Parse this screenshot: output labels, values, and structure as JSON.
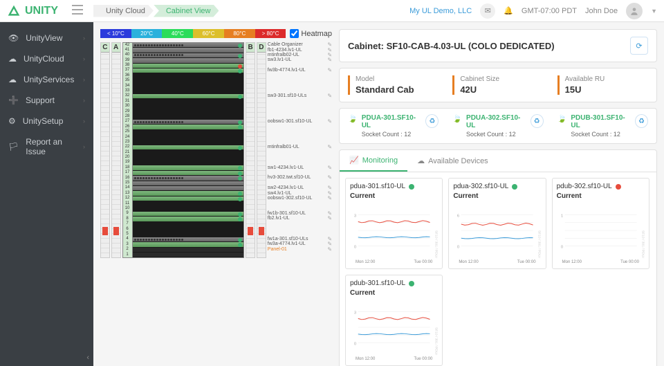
{
  "brand": "UNITY",
  "breadcrumb": [
    "Unity Cloud",
    "Cabinet View"
  ],
  "topRight": {
    "org": "My UL Demo, LLC",
    "tz": "GMT-07:00 PDT",
    "user": "John Doe"
  },
  "sidebar": [
    {
      "icon": "eye",
      "label": "UnityView"
    },
    {
      "icon": "cloud",
      "label": "UnityCloud"
    },
    {
      "icon": "cloud",
      "label": "UnityServices"
    },
    {
      "icon": "life-ring",
      "label": "Support"
    },
    {
      "icon": "gear",
      "label": "UnitySetup"
    },
    {
      "icon": "flag",
      "label": "Report an Issue"
    }
  ],
  "heatmap": {
    "checked": true,
    "label": "Heatmap",
    "segments": [
      {
        "t": "< 10°C",
        "c": "#2b3bdc"
      },
      {
        "t": "20°C",
        "c": "#2bb1dc"
      },
      {
        "t": "40°C",
        "c": "#2bdc5a"
      },
      {
        "t": "60°C",
        "c": "#dcbf2b"
      },
      {
        "t": "80°C",
        "c": "#e67e22"
      },
      {
        "t": "> 80°C",
        "c": "#dc2b2b"
      }
    ]
  },
  "pduCols": [
    "C",
    "A",
    "B",
    "D"
  ],
  "rack": {
    "units": 42,
    "devices": [
      {
        "from": 42,
        "to": 41,
        "type": "server",
        "led": "g"
      },
      {
        "from": 40,
        "to": 39,
        "type": "server",
        "led": "g"
      },
      {
        "from": 38,
        "to": 38,
        "type": "green",
        "led": "r"
      },
      {
        "from": 37,
        "to": 37,
        "type": "green",
        "led": "g"
      },
      {
        "from": 36,
        "to": 33,
        "type": "dark"
      },
      {
        "from": 32,
        "to": 32,
        "type": "green",
        "led": "g"
      },
      {
        "from": 31,
        "to": 28,
        "type": "dark"
      },
      {
        "from": 27,
        "to": 27,
        "type": "server",
        "led": "g"
      },
      {
        "from": 26,
        "to": 26,
        "type": "green",
        "led": "g"
      },
      {
        "from": 25,
        "to": 23,
        "type": "dark"
      },
      {
        "from": 22,
        "to": 22,
        "type": "green",
        "led": "g"
      },
      {
        "from": 21,
        "to": 19,
        "type": "dark"
      },
      {
        "from": 18,
        "to": 18,
        "type": "green",
        "led": "g"
      },
      {
        "from": 17,
        "to": 17,
        "type": "green",
        "led": "g"
      },
      {
        "from": 16,
        "to": 14,
        "type": "server",
        "led": "g"
      },
      {
        "from": 13,
        "to": 13,
        "type": "green",
        "led": "g"
      },
      {
        "from": 12,
        "to": 12,
        "type": "green",
        "led": "g"
      },
      {
        "from": 11,
        "to": 10,
        "type": "dark"
      },
      {
        "from": 9,
        "to": 9,
        "type": "green",
        "led": "g"
      },
      {
        "from": 8,
        "to": 8,
        "type": "green",
        "led": "g"
      },
      {
        "from": 7,
        "to": 5,
        "type": "dark"
      },
      {
        "from": 4,
        "to": 4,
        "type": "server",
        "led": "g"
      },
      {
        "from": 3,
        "to": 3,
        "type": "green",
        "led": "g"
      }
    ],
    "labels": [
      {
        "u": 42,
        "t": "Cable Organizer"
      },
      {
        "u": 41,
        "t": "fb1-4234.lv1-UL"
      },
      {
        "u": 40,
        "t": "mtinfralb02-UL"
      },
      {
        "u": 39,
        "t": "sw3.lv1-UL"
      },
      {
        "u": 37,
        "t": "fw3b-4774.lv1-UL"
      },
      {
        "u": 32,
        "t": "sw3-301.sf10-ULs"
      },
      {
        "u": 27,
        "t": "oobsw1-301.sf10-UL"
      },
      {
        "u": 22,
        "t": "mtinfralb01-UL"
      },
      {
        "u": 18,
        "t": "sw1-4234.lv1-UL"
      },
      {
        "u": 16,
        "t": "hv3-302.twt.sf10-UL"
      },
      {
        "u": 14,
        "t": "sw2-4234.lv1-UL"
      },
      {
        "u": 13,
        "t": "sw4.lv1-UL"
      },
      {
        "u": 12,
        "t": "oobsw1-302.sf10-UL"
      },
      {
        "u": 9,
        "t": "fw1b-301.sf10-UL"
      },
      {
        "u": 8,
        "t": "fb2.lv1-UL"
      },
      {
        "u": 4,
        "t": "fw1a-301.sf10-ULs"
      },
      {
        "u": 3,
        "t": "fw3a-4774.lv1-UL"
      },
      {
        "u": 2,
        "t": "Panel-01",
        "warn": true
      }
    ]
  },
  "cabinet": {
    "title": "Cabinet: SF10-CAB-4.03-UL (COLO DEDICATED)",
    "info": [
      {
        "lbl": "Model",
        "val": "Standard Cab"
      },
      {
        "lbl": "Cabinet Size",
        "val": "42U"
      },
      {
        "lbl": "Available RU",
        "val": "15U"
      }
    ],
    "pdus": [
      {
        "name": "PDUA-301.SF10-UL",
        "sockets": "Socket Count : 12"
      },
      {
        "name": "PDUA-302.SF10-UL",
        "sockets": "Socket Count : 12"
      },
      {
        "name": "PDUB-301.SF10-UL",
        "sockets": "Socket Count : 12"
      }
    ]
  },
  "tabs": [
    {
      "icon": "chart",
      "label": "Monitoring",
      "active": true
    },
    {
      "icon": "cloud",
      "label": "Available Devices",
      "active": false
    }
  ],
  "charts": [
    {
      "name": "pdua-301.sf10-UL",
      "status": "#3cb371",
      "metric": "Current",
      "redY": 0.22,
      "blueY": 0.72,
      "ymax": 3,
      "xlabels": [
        "Mon 12:00",
        "Tue 00:00"
      ]
    },
    {
      "name": "pdua-302.sf10-UL",
      "status": "#3cb371",
      "metric": "Current",
      "redY": 0.3,
      "blueY": 0.75,
      "ymax": 6,
      "xlabels": [
        "Mon 12:00",
        "Tue 00:00"
      ]
    },
    {
      "name": "pdub-302.sf10-UL",
      "status": "#e74c3c",
      "metric": "Current",
      "redY": null,
      "blueY": null,
      "ymax": 1,
      "xlabels": [
        "Mon 12:00",
        "Tue 00:00"
      ]
    },
    {
      "name": "pdub-301.sf10-UL",
      "status": "#3cb371",
      "metric": "Current",
      "redY": 0.22,
      "blueY": 0.72,
      "ymax": 3,
      "xlabels": [
        "Mon 12:00",
        "Tue 00:00"
      ]
    }
  ]
}
